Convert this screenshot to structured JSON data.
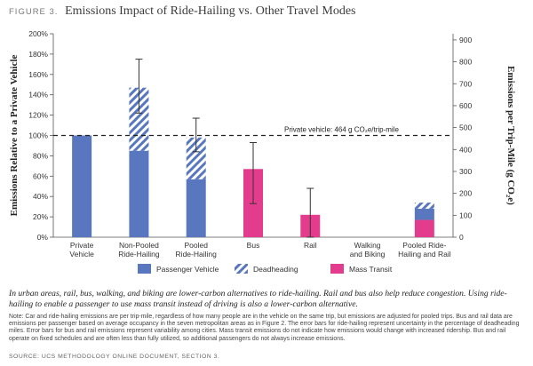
{
  "figure": {
    "label": "FIGURE 3.",
    "title": "Emissions Impact of Ride-Hailing vs. Other Travel Modes"
  },
  "colors": {
    "passenger_vehicle": "#5877be",
    "deadheading": "#5877be",
    "mass_transit": "#e43c8c",
    "axis": "#555555",
    "grid_ref": "#222222"
  },
  "chart_data": {
    "type": "bar",
    "categories": [
      "Private\nVehicle",
      "Non-Pooled\nRide-Hailing",
      "Pooled\nRide-Hailing",
      "Bus",
      "Rail",
      "Walking\nand Biking",
      "Pooled Ride-\nHailing and Rail"
    ],
    "series": [
      {
        "name": "Passenger Vehicle",
        "key": "passenger_vehicle",
        "pattern": "solid",
        "values": [
          100,
          85,
          57,
          0,
          0,
          0,
          11
        ]
      },
      {
        "name": "Deadheading",
        "key": "deadheading",
        "pattern": "hatch",
        "values": [
          0,
          62,
          41,
          0,
          0,
          0,
          6
        ]
      },
      {
        "name": "Mass Transit",
        "key": "mass_transit",
        "pattern": "solid",
        "values": [
          0,
          0,
          0,
          67,
          22,
          0,
          17
        ]
      }
    ],
    "bar_order": [
      [
        "mass_transit",
        "passenger_vehicle",
        "deadheading"
      ],
      [
        "mass_transit",
        "passenger_vehicle",
        "deadheading"
      ],
      [
        "mass_transit",
        "passenger_vehicle",
        "deadheading"
      ],
      [
        "mass_transit",
        "passenger_vehicle",
        "deadheading"
      ],
      [
        "mass_transit",
        "passenger_vehicle",
        "deadheading"
      ],
      [
        "mass_transit",
        "passenger_vehicle",
        "deadheading"
      ],
      [
        "mass_transit",
        "passenger_vehicle",
        "deadheading"
      ]
    ],
    "error_bars": [
      null,
      {
        "low": 122,
        "high": 175
      },
      {
        "low": 84,
        "high": 117
      },
      {
        "low": 33,
        "high": 93
      },
      {
        "low": 0,
        "high": 48
      },
      null,
      null
    ],
    "ylabel": "Emissions Relative to a Private Vehicle",
    "ylim": [
      0,
      200
    ],
    "yticks": [
      0,
      20,
      40,
      60,
      80,
      100,
      120,
      140,
      160,
      180,
      200
    ],
    "ytick_labels": [
      "0%",
      "20%",
      "40%",
      "60%",
      "80%",
      "100%",
      "120%",
      "140%",
      "160%",
      "180%",
      "200%"
    ],
    "y2label": "Emissions per Trip-Mile (g CO₂e)",
    "y2lim": [
      0,
      928
    ],
    "y2ticks": [
      0,
      100,
      200,
      300,
      400,
      500,
      600,
      700,
      800,
      900
    ],
    "reference_line": {
      "value": 100,
      "label": "Private vehicle: 464 g CO₂e/trip-mile"
    },
    "legend": [
      "Passenger Vehicle",
      "Deadheading",
      "Mass Transit"
    ],
    "legend_position": "bottom",
    "grid": false
  },
  "caption": "In urban areas, rail, bus, walking, and biking are lower-carbon alternatives to ride-hailing. Rail and bus also help reduce congestion. Using ride-hailing to enable a passenger to use mass transit instead of driving is also a lower-carbon alternative.",
  "note": "Note: Car and ride-hailing emissions are per trip-mile, regardless of how many people are in the vehicle on the same trip, but emissions are adjusted for pooled trips. Bus and rail data are emissions per passenger based on average occupancy in the seven metropolitan areas as in Figure 2. The error bars for ride-hailing represent uncertainty in the percentage of deadheading miles. Error bars for bus and rail emissions represent variability among cities. Mass transit emissions do not indicate how emissions would change with increased ridership. Bus and rail operate on fixed schedules and are often less than fully utilized, so additional passengers do not always increase emissions.",
  "source": "SOURCE: UCS METHODOLOGY ONLINE DOCUMENT, SECTION 3."
}
